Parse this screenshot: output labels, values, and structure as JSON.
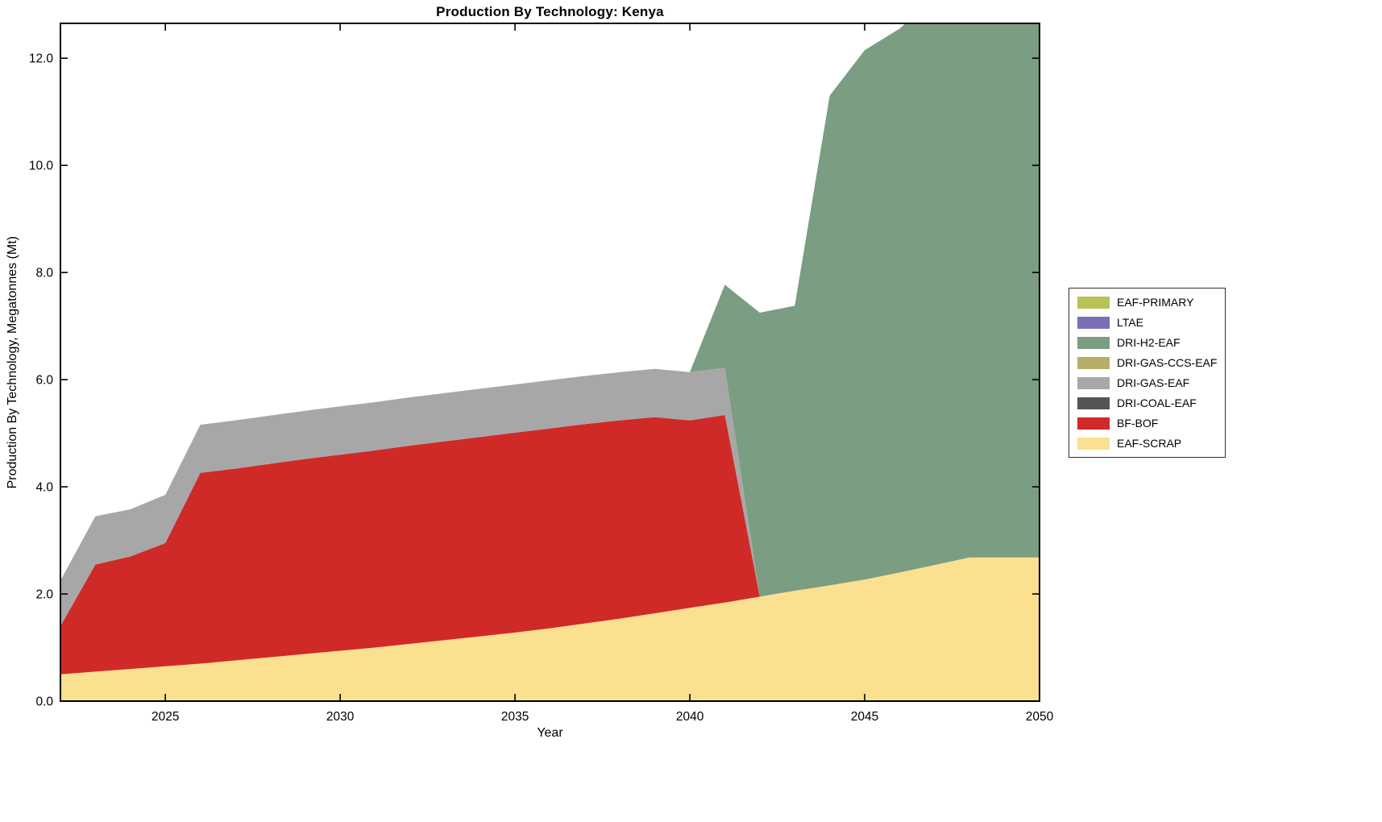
{
  "chart_data": {
    "type": "area",
    "title": "Production By Technology: Kenya",
    "xlabel": "Year",
    "ylabel": "Production By Technology, Megatonnes (Mt)",
    "grid": false,
    "legend_position": "outside-right",
    "x_range": [
      2022,
      2050
    ],
    "y_range": [
      0,
      12.65
    ],
    "x_ticks": [
      2025,
      2030,
      2035,
      2040,
      2045,
      2050
    ],
    "x_tick_labels": [
      "2025",
      "2030",
      "2035",
      "2040",
      "2045",
      "2050"
    ],
    "y_ticks": [
      0,
      2,
      4,
      6,
      8,
      10,
      12
    ],
    "y_tick_labels": [
      "0.0",
      "2.0",
      "4.0",
      "6.0",
      "8.0",
      "10.0",
      "12.0"
    ],
    "years": [
      2022,
      2023,
      2024,
      2025,
      2026,
      2027,
      2028,
      2029,
      2030,
      2031,
      2032,
      2033,
      2034,
      2035,
      2036,
      2037,
      2038,
      2039,
      2040,
      2041,
      2042,
      2043,
      2044,
      2045,
      2046,
      2047,
      2048,
      2049,
      2050
    ],
    "series": [
      {
        "name": "EAF-PRIMARY",
        "color": "#b9c255",
        "values": [
          0,
          0,
          0,
          0,
          0,
          0,
          0,
          0,
          0,
          0,
          0,
          0,
          0,
          0,
          0,
          0,
          0,
          0,
          0,
          0,
          0,
          0,
          0,
          0,
          0,
          0,
          0,
          0,
          0
        ]
      },
      {
        "name": "LTAE",
        "color": "#7a70b8",
        "values": [
          0,
          0,
          0,
          0,
          0,
          0,
          0,
          0,
          0,
          0,
          0,
          0,
          0,
          0,
          0,
          0,
          0,
          0,
          0,
          0,
          0,
          0,
          0,
          0,
          0,
          0,
          0,
          0,
          0
        ]
      },
      {
        "name": "DRI-H2-EAF",
        "color": "#7b9d81",
        "values": [
          0,
          0,
          0,
          0,
          0,
          0,
          0,
          0,
          0,
          0,
          0,
          0,
          0,
          0,
          0,
          0,
          0,
          0,
          0,
          1.55,
          5.3,
          5.32,
          9.14,
          9.88,
          10.15,
          10.6,
          10.9,
          11.0,
          11.1
        ]
      },
      {
        "name": "DRI-GAS-CCS-EAF",
        "color": "#b6ae68",
        "values": [
          0,
          0,
          0,
          0,
          0,
          0,
          0,
          0,
          0,
          0,
          0,
          0,
          0,
          0,
          0,
          0,
          0,
          0,
          0,
          0,
          0,
          0,
          0,
          0,
          0,
          0,
          0,
          0,
          0
        ]
      },
      {
        "name": "DRI-GAS-EAF",
        "color": "#a7a7a7",
        "values": [
          0.85,
          0.9,
          0.88,
          0.9,
          0.9,
          0.9,
          0.9,
          0.9,
          0.9,
          0.9,
          0.9,
          0.9,
          0.9,
          0.9,
          0.9,
          0.9,
          0.9,
          0.9,
          0.9,
          0.88,
          0,
          0,
          0,
          0,
          0,
          0,
          0,
          0,
          0
        ]
      },
      {
        "name": "DRI-COAL-EAF",
        "color": "#555555",
        "values": [
          0,
          0,
          0,
          0,
          0,
          0,
          0,
          0,
          0,
          0,
          0,
          0,
          0,
          0,
          0,
          0,
          0,
          0,
          0,
          0,
          0,
          0,
          0,
          0,
          0,
          0,
          0,
          0,
          0
        ]
      },
      {
        "name": "BF-BOF",
        "color": "#cf2a27",
        "values": [
          0.9,
          2.0,
          2.1,
          2.3,
          3.56,
          3.58,
          3.61,
          3.64,
          3.66,
          3.68,
          3.7,
          3.71,
          3.72,
          3.73,
          3.73,
          3.72,
          3.7,
          3.66,
          3.5,
          3.5,
          0,
          0,
          0,
          0,
          0,
          0,
          0,
          0,
          0
        ]
      },
      {
        "name": "EAF-SCRAP",
        "color": "#fbe18f",
        "values": [
          0.5,
          0.55,
          0.6,
          0.65,
          0.7,
          0.76,
          0.82,
          0.88,
          0.94,
          1.0,
          1.07,
          1.14,
          1.21,
          1.28,
          1.36,
          1.45,
          1.54,
          1.64,
          1.74,
          1.84,
          1.95,
          2.06,
          2.16,
          2.27,
          2.4,
          2.54,
          2.68,
          2.68,
          2.68
        ]
      }
    ]
  }
}
